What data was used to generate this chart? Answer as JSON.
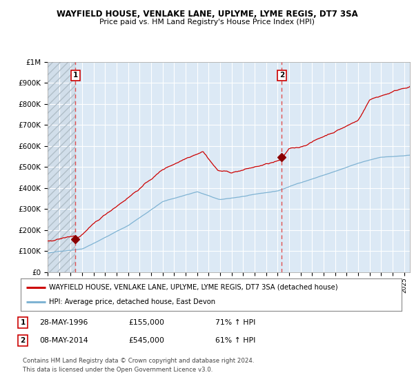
{
  "title": "WAYFIELD HOUSE, VENLAKE LANE, UPLYME, LYME REGIS, DT7 3SA",
  "subtitle": "Price paid vs. HM Land Registry's House Price Index (HPI)",
  "legend_line1": "WAYFIELD HOUSE, VENLAKE LANE, UPLYME, LYME REGIS, DT7 3SA (detached house)",
  "legend_line2": "HPI: Average price, detached house, East Devon",
  "marker1_date": "28-MAY-1996",
  "marker1_price": 155000,
  "marker1_label": "1",
  "marker1_hpi": "71% ↑ HPI",
  "marker2_date": "08-MAY-2014",
  "marker2_price": 545000,
  "marker2_label": "2",
  "marker2_hpi": "61% ↑ HPI",
  "footer1": "Contains HM Land Registry data © Crown copyright and database right 2024.",
  "footer2": "This data is licensed under the Open Government Licence v3.0.",
  "red_line_color": "#cc0000",
  "blue_line_color": "#7fb3d3",
  "dashed_line_color": "#e05050",
  "marker_color": "#8b0000",
  "plot_bg": "#dce9f5",
  "hatch_bg": "#c8d4e0",
  "grid_color": "#ffffff",
  "label_border_color": "#cc0000",
  "xmin": 1994.0,
  "xmax": 2025.5,
  "ymin": 0,
  "ymax": 1000000,
  "t1": 1996.4167,
  "t2": 2014.3611
}
